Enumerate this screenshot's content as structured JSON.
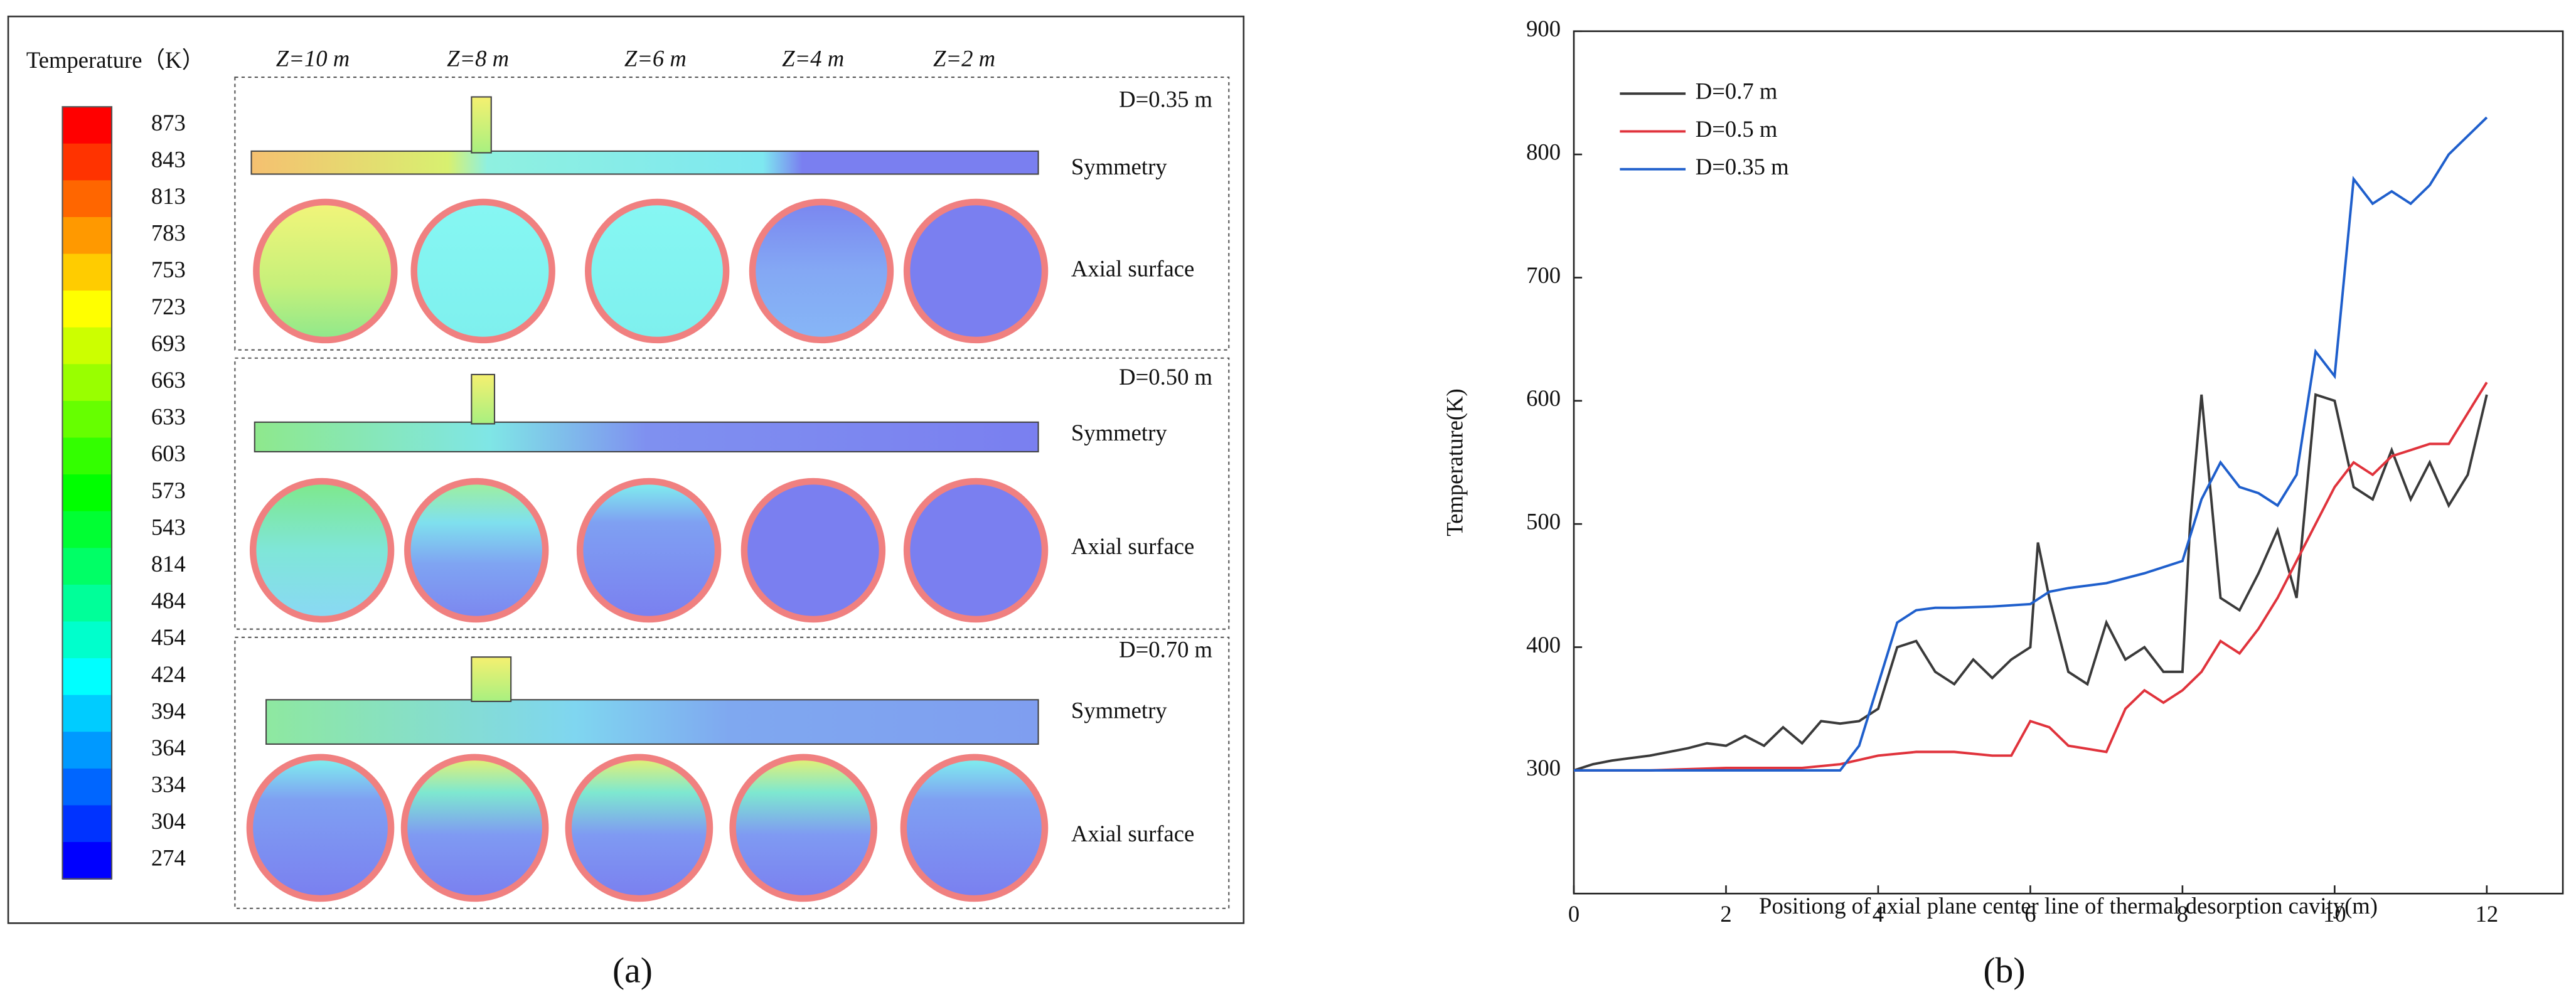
{
  "panel_a": {
    "legend_title": "Temperature（K）",
    "colorbar": [
      873,
      843,
      813,
      783,
      753,
      723,
      693,
      663,
      633,
      603,
      573,
      543,
      814,
      484,
      454,
      424,
      394,
      364,
      334,
      304,
      274
    ],
    "z_labels": [
      "Z=10 m",
      "Z=8 m",
      "Z=6 m",
      "Z=4 m",
      "Z=2 m"
    ],
    "rows": [
      {
        "diameter": "D=0.35 m",
        "plane": "Symmetry",
        "section": "Axial surface"
      },
      {
        "diameter": "D=0.50 m",
        "plane": "Symmetry",
        "section": "Axial surface"
      },
      {
        "diameter": "D=0.70 m",
        "plane": "Symmetry",
        "section": "Axial surface"
      }
    ],
    "caption": "(a)"
  },
  "chart_data": {
    "type": "line",
    "caption": "(b)",
    "xlabel": "Positiong of axial plane center line of thermal desorption cavity(m)",
    "ylabel": "Temperature(K)",
    "xlim": [
      0,
      13
    ],
    "ylim": [
      200,
      900
    ],
    "xticks": [
      0,
      2,
      4,
      6,
      8,
      10,
      12
    ],
    "yticks": [
      300,
      400,
      500,
      600,
      700,
      800,
      900
    ],
    "legend": "upper left",
    "series": [
      {
        "name": "D=0.7 m",
        "color": "#3a3a3a",
        "x": [
          0,
          0.25,
          0.5,
          0.75,
          1,
          1.25,
          1.5,
          1.75,
          2,
          2.25,
          2.5,
          2.75,
          3,
          3.25,
          3.5,
          3.75,
          4,
          4.25,
          4.5,
          4.75,
          5,
          5.25,
          5.5,
          5.75,
          6,
          6.1,
          6.25,
          6.5,
          6.75,
          7,
          7.25,
          7.5,
          7.75,
          8,
          8.1,
          8.25,
          8.5,
          8.75,
          9,
          9.25,
          9.5,
          9.75,
          10,
          10.25,
          10.5,
          10.75,
          11,
          11.25,
          11.5,
          11.75,
          12
        ],
        "values": [
          300,
          305,
          308,
          310,
          312,
          315,
          318,
          322,
          320,
          328,
          320,
          335,
          322,
          340,
          338,
          340,
          350,
          400,
          405,
          380,
          370,
          390,
          375,
          390,
          400,
          485,
          440,
          380,
          370,
          420,
          390,
          400,
          380,
          380,
          500,
          605,
          440,
          430,
          460,
          495,
          440,
          605,
          600,
          530,
          520,
          560,
          520,
          550,
          515,
          540,
          605
        ]
      },
      {
        "name": "D=0.5 m",
        "color": "#e0333c",
        "x": [
          0,
          1,
          2,
          3,
          3.5,
          4,
          4.5,
          5,
          5.5,
          5.75,
          6,
          6.25,
          6.5,
          7,
          7.25,
          7.5,
          7.75,
          8,
          8.25,
          8.5,
          8.75,
          9,
          9.25,
          9.5,
          9.75,
          10,
          10.25,
          10.5,
          10.75,
          11,
          11.25,
          11.5,
          12
        ],
        "values": [
          300,
          300,
          302,
          302,
          305,
          312,
          315,
          315,
          312,
          312,
          340,
          335,
          320,
          315,
          350,
          365,
          355,
          365,
          380,
          405,
          395,
          415,
          440,
          470,
          500,
          530,
          550,
          540,
          555,
          560,
          565,
          565,
          615
        ]
      },
      {
        "name": "D=0.35 m",
        "color": "#1f5fcc",
        "x": [
          0,
          1,
          2,
          3,
          3.5,
          3.75,
          4,
          4.25,
          4.5,
          4.75,
          5,
          5.5,
          6,
          6.25,
          6.5,
          7,
          7.5,
          8,
          8.25,
          8.5,
          8.75,
          9,
          9.25,
          9.5,
          9.75,
          10,
          10.25,
          10.5,
          10.75,
          11,
          11.25,
          11.5,
          11.75,
          12
        ],
        "values": [
          300,
          300,
          300,
          300,
          300,
          320,
          370,
          420,
          430,
          432,
          432,
          433,
          435,
          445,
          448,
          452,
          460,
          470,
          520,
          550,
          530,
          525,
          515,
          540,
          640,
          620,
          780,
          760,
          770,
          760,
          775,
          800,
          815,
          830
        ]
      }
    ]
  }
}
